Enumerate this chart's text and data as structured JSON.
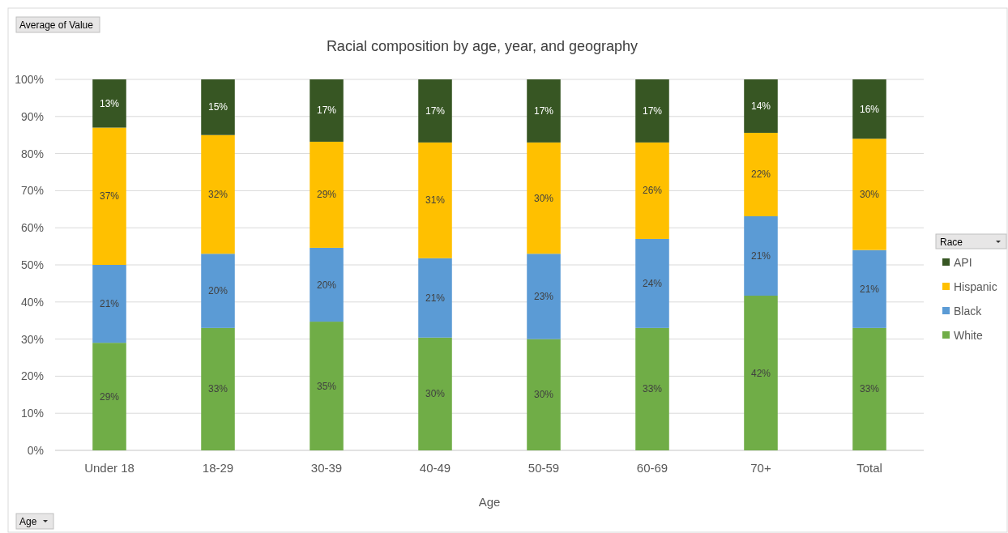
{
  "chart_data": {
    "type": "bar",
    "stacked": true,
    "title": "Racial composition by age, year, and geography",
    "xlabel": "Age",
    "legend_title": "Race",
    "legend": "right",
    "categories": [
      "Under 18",
      "18-29",
      "30-39",
      "40-49",
      "50-59",
      "60-69",
      "70+",
      "Total"
    ],
    "series": [
      {
        "name": "White",
        "color": "#70ad47",
        "values": [
          29,
          33,
          34.7,
          30.4,
          30,
          33,
          41.7,
          33
        ],
        "value_labels": [
          "29%",
          "33%",
          "35%",
          "30%",
          "30%",
          "33%",
          "42%",
          "33%"
        ]
      },
      {
        "name": "Black",
        "color": "#5b9bd5",
        "values": [
          21,
          20,
          19.9,
          21.4,
          23,
          24,
          21.4,
          21
        ],
        "value_labels": [
          "21%",
          "20%",
          "20%",
          "21%",
          "23%",
          "24%",
          "21%",
          "21%"
        ]
      },
      {
        "name": "Hispanic",
        "color": "#ffc000",
        "values": [
          37,
          32,
          28.6,
          31.2,
          30,
          26,
          22.5,
          30
        ],
        "value_labels": [
          "37%",
          "32%",
          "29%",
          "31%",
          "30%",
          "26%",
          "22%",
          "30%"
        ]
      },
      {
        "name": "API",
        "color": "#375623",
        "values": [
          13,
          15,
          16.8,
          17,
          17,
          17,
          14.4,
          16
        ],
        "value_labels": [
          "13%",
          "15%",
          "17%",
          "17%",
          "17%",
          "17%",
          "14%",
          "16%"
        ]
      }
    ],
    "ylim": [
      0,
      100
    ],
    "yticks": [
      {
        "value": 0,
        "label": "0%"
      },
      {
        "value": 10,
        "label": "10%"
      },
      {
        "value": 20,
        "label": "20%"
      },
      {
        "value": 30,
        "label": "30%"
      },
      {
        "value": 40,
        "label": "40%"
      },
      {
        "value": 50,
        "label": "50%"
      },
      {
        "value": 60,
        "label": "60%"
      },
      {
        "value": 70,
        "label": "70%"
      },
      {
        "value": 80,
        "label": "80%"
      },
      {
        "value": 90,
        "label": "90%"
      },
      {
        "value": 100,
        "label": "100%"
      }
    ],
    "grid": "y",
    "annotations": [
      "Average of Value",
      "Age"
    ]
  }
}
